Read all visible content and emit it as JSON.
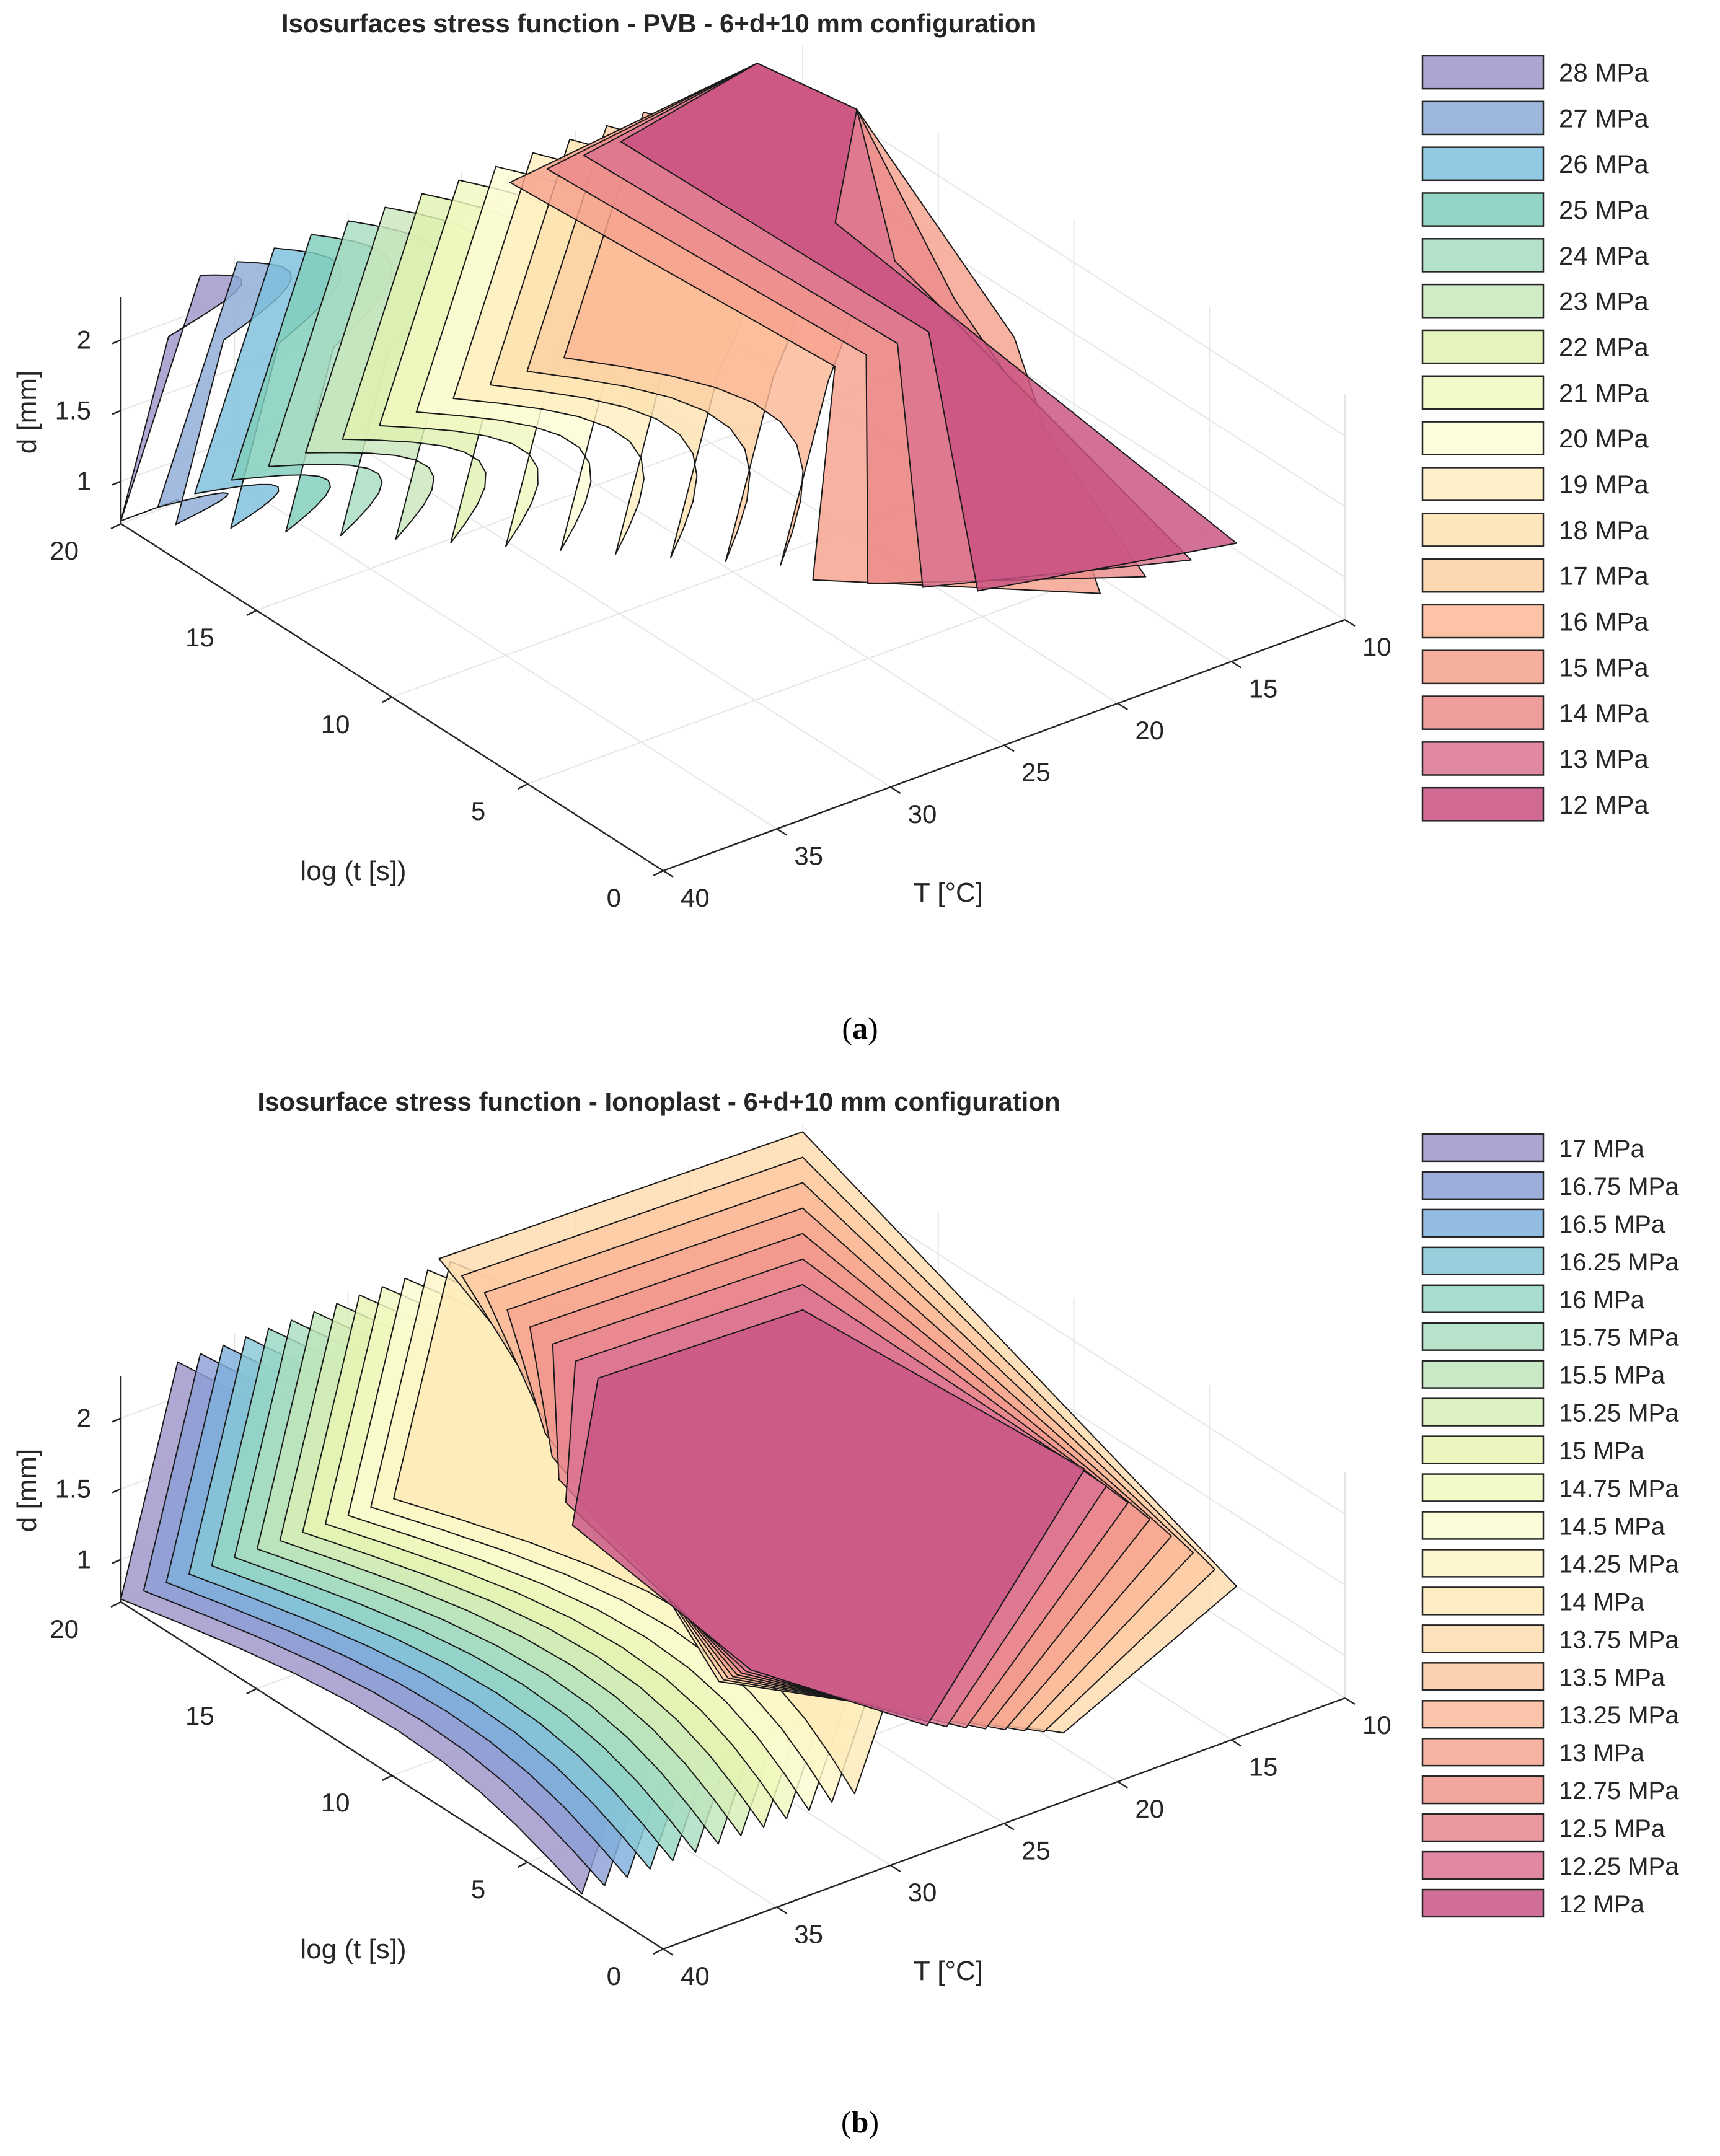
{
  "chart_data": [
    {
      "type": "isosurface",
      "panel_label": "a",
      "title": "Isosurfaces stress function - PVB - 6+d+10 mm configuration",
      "xlabel": "T [°C]",
      "ylabel": "log (t [s])",
      "zlabel": "d [mm]",
      "xlim": [
        10,
        40
      ],
      "ylim": [
        0,
        20
      ],
      "zlim": [
        0.7,
        2.3
      ],
      "xticks": [
        10,
        15,
        20,
        25,
        30,
        35,
        40
      ],
      "yticks": [
        0,
        5,
        10,
        15,
        20
      ],
      "zticks": [
        1,
        1.5,
        2
      ],
      "legend_position": "right",
      "series": [
        {
          "name": "28 MPa",
          "value": 28,
          "color": "#9d95c9"
        },
        {
          "name": "27 MPa",
          "value": 27,
          "color": "#8cabd6"
        },
        {
          "name": "26 MPa",
          "value": 26,
          "color": "#7cbfdc"
        },
        {
          "name": "25 MPa",
          "value": 25,
          "color": "#7fcdbb"
        },
        {
          "name": "24 MPa",
          "value": 24,
          "color": "#a7dcc1"
        },
        {
          "name": "23 MPa",
          "value": 23,
          "color": "#c9e7bc"
        },
        {
          "name": "22 MPa",
          "value": 22,
          "color": "#e0f1b1"
        },
        {
          "name": "21 MPa",
          "value": 21,
          "color": "#f1f8c0"
        },
        {
          "name": "20 MPa",
          "value": 20,
          "color": "#fdfbd6"
        },
        {
          "name": "19 MPa",
          "value": 19,
          "color": "#feeec0"
        },
        {
          "name": "18 MPa",
          "value": 18,
          "color": "#fde2b0"
        },
        {
          "name": "17 MPa",
          "value": 17,
          "color": "#fcd0a2"
        },
        {
          "name": "16 MPa",
          "value": 16,
          "color": "#fbb896"
        },
        {
          "name": "15 MPa",
          "value": 15,
          "color": "#f6a18c"
        },
        {
          "name": "14 MPa",
          "value": 14,
          "color": "#ec8b8c"
        },
        {
          "name": "13 MPa",
          "value": 13,
          "color": "#dc7490"
        },
        {
          "name": "12 MPa",
          "value": 12,
          "color": "#c85080"
        }
      ]
    },
    {
      "type": "isosurface",
      "panel_label": "b",
      "title": "Isosurface stress function - Ionoplast - 6+d+10 mm configuration",
      "xlabel": "T [°C]",
      "ylabel": "log (t [s])",
      "zlabel": "d [mm]",
      "xlim": [
        10,
        40
      ],
      "ylim": [
        0,
        20
      ],
      "zlim": [
        0.7,
        2.3
      ],
      "xticks": [
        10,
        15,
        20,
        25,
        30,
        35,
        40
      ],
      "yticks": [
        0,
        5,
        10,
        15,
        20
      ],
      "zticks": [
        1,
        1.5,
        2
      ],
      "legend_position": "right",
      "series": [
        {
          "name": "17 MPa",
          "value": 17,
          "color": "#9d95c9"
        },
        {
          "name": "16.75 MPa",
          "value": 16.75,
          "color": "#8c9fd6"
        },
        {
          "name": "16.5 MPa",
          "value": 16.5,
          "color": "#7fb0dc"
        },
        {
          "name": "16.25 MPa",
          "value": 16.25,
          "color": "#87c7d6"
        },
        {
          "name": "16 MPa",
          "value": 16,
          "color": "#97d7c5"
        },
        {
          "name": "15.75 MPa",
          "value": 15.75,
          "color": "#a9dec0"
        },
        {
          "name": "15.5 MPa",
          "value": 15.5,
          "color": "#bfe5bc"
        },
        {
          "name": "15.25 MPa",
          "value": 15.25,
          "color": "#d5eeb6"
        },
        {
          "name": "15 MPa",
          "value": 15,
          "color": "#e6f4b3"
        },
        {
          "name": "14.75 MPa",
          "value": 14.75,
          "color": "#f2f8c0"
        },
        {
          "name": "14.5 MPa",
          "value": 14.5,
          "color": "#fbfbd1"
        },
        {
          "name": "14.25 MPa",
          "value": 14.25,
          "color": "#fef5c7"
        },
        {
          "name": "14 MPa",
          "value": 14,
          "color": "#feeab8"
        },
        {
          "name": "13.75 MPa",
          "value": 13.75,
          "color": "#fddcae"
        },
        {
          "name": "13.5 MPa",
          "value": 13.5,
          "color": "#fcc9a2"
        },
        {
          "name": "13.25 MPa",
          "value": 13.25,
          "color": "#fab99a"
        },
        {
          "name": "13 MPa",
          "value": 13,
          "color": "#f6a690"
        },
        {
          "name": "12.75 MPa",
          "value": 12.75,
          "color": "#f0968d"
        },
        {
          "name": "12.5 MPa",
          "value": 12.5,
          "color": "#e88690"
        },
        {
          "name": "12.25 MPa",
          "value": 12.25,
          "color": "#dc7392"
        },
        {
          "name": "12 MPa",
          "value": 12,
          "color": "#c85585"
        }
      ]
    }
  ]
}
